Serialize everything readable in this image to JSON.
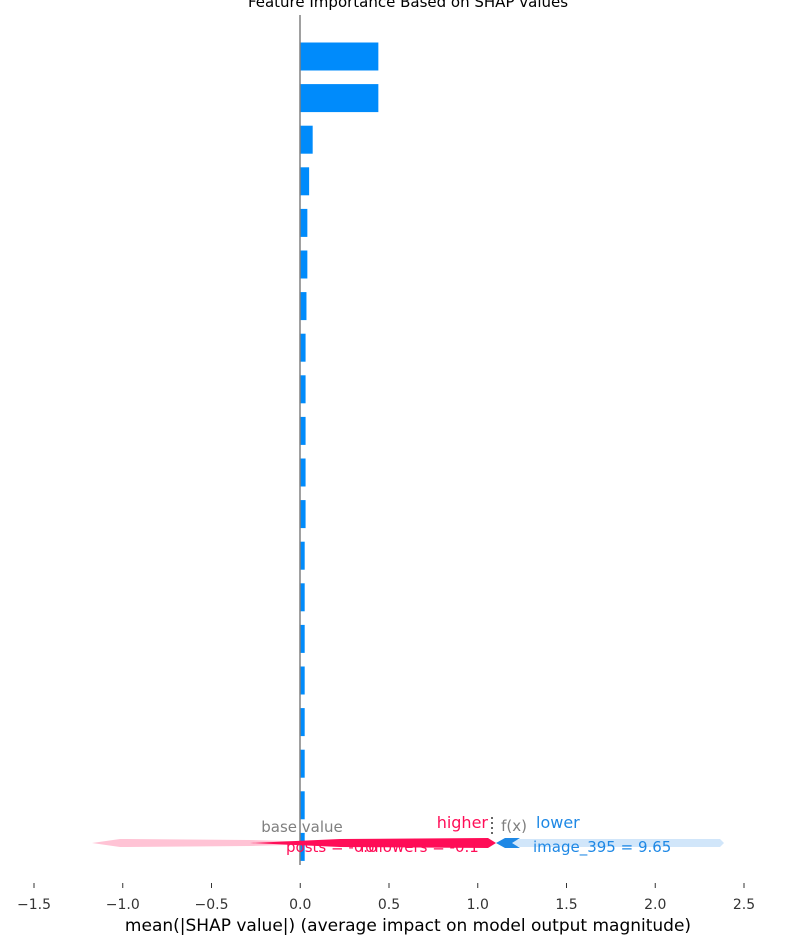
{
  "chart_data": {
    "type": "bar",
    "orientation": "horizontal",
    "title": "Feature Importance Based on SHAP values",
    "xlabel": "mean(|SHAP value|) (average impact on model output magnitude)",
    "ylabel": "",
    "xlim": [
      -1.5,
      2.5
    ],
    "xticks": [
      "−1.5",
      "−1.0",
      "−0.5",
      "0.0",
      "0.5",
      "1.0",
      "1.5",
      "2.0",
      "2.5"
    ],
    "xtick_values": [
      -1.5,
      -1.0,
      -0.5,
      0.0,
      0.5,
      1.0,
      1.5,
      2.0,
      2.5
    ],
    "grid": false,
    "bar_color": "#008bfb",
    "values": [
      0.44,
      0.44,
      0.07,
      0.05,
      0.04,
      0.04,
      0.035,
      0.03,
      0.03,
      0.03,
      0.03,
      0.03,
      0.025,
      0.025,
      0.025,
      0.025,
      0.025,
      0.025,
      0.025,
      0.025
    ]
  },
  "force_overlay": {
    "higher_label": "higher",
    "lower_label": "lower",
    "fx_label": "f(x)",
    "base_value_label": "base value",
    "left_feature_text": "posts = -0.6",
    "middle_feature_text": "followers = -0.1",
    "right_feature_text": "image_395 = 9.65",
    "colors": {
      "positive": "#ff0d57",
      "positive_light": "#ffc3d5",
      "negative": "#1e88e5",
      "negative_light": "#d1e6fa",
      "base_value_text": "#7f7f7f",
      "axis": "#808080"
    }
  }
}
